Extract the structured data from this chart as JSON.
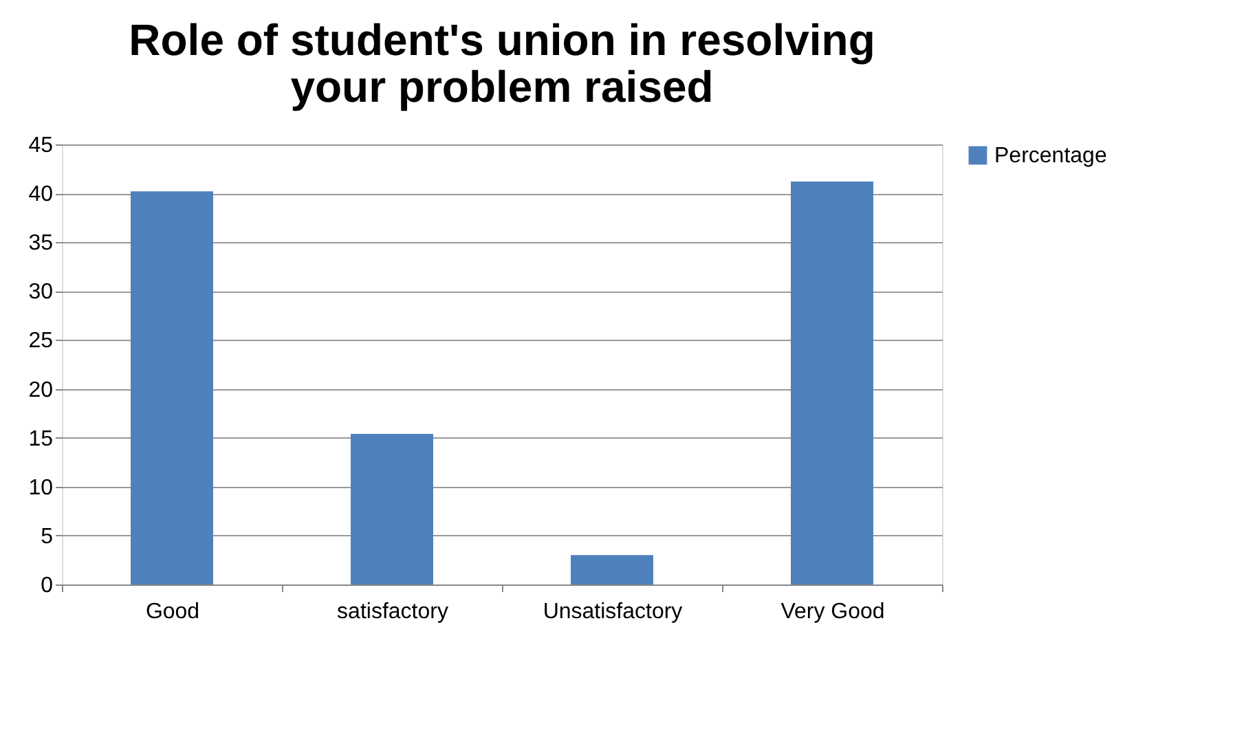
{
  "chart_data": {
    "type": "bar",
    "title": "Role of student's union in resolving your problem raised",
    "categories": [
      "Good",
      "satisfactory",
      "Unsatisfactory",
      "Very Good"
    ],
    "series": [
      {
        "name": "Percentage",
        "color": "#4f81bd",
        "values": [
          40.2,
          15.4,
          3.0,
          41.2
        ]
      }
    ],
    "ylim": [
      0,
      45
    ],
    "yticks": [
      0,
      5,
      10,
      15,
      20,
      25,
      30,
      35,
      40,
      45
    ],
    "grid": "y",
    "legend": "right"
  }
}
